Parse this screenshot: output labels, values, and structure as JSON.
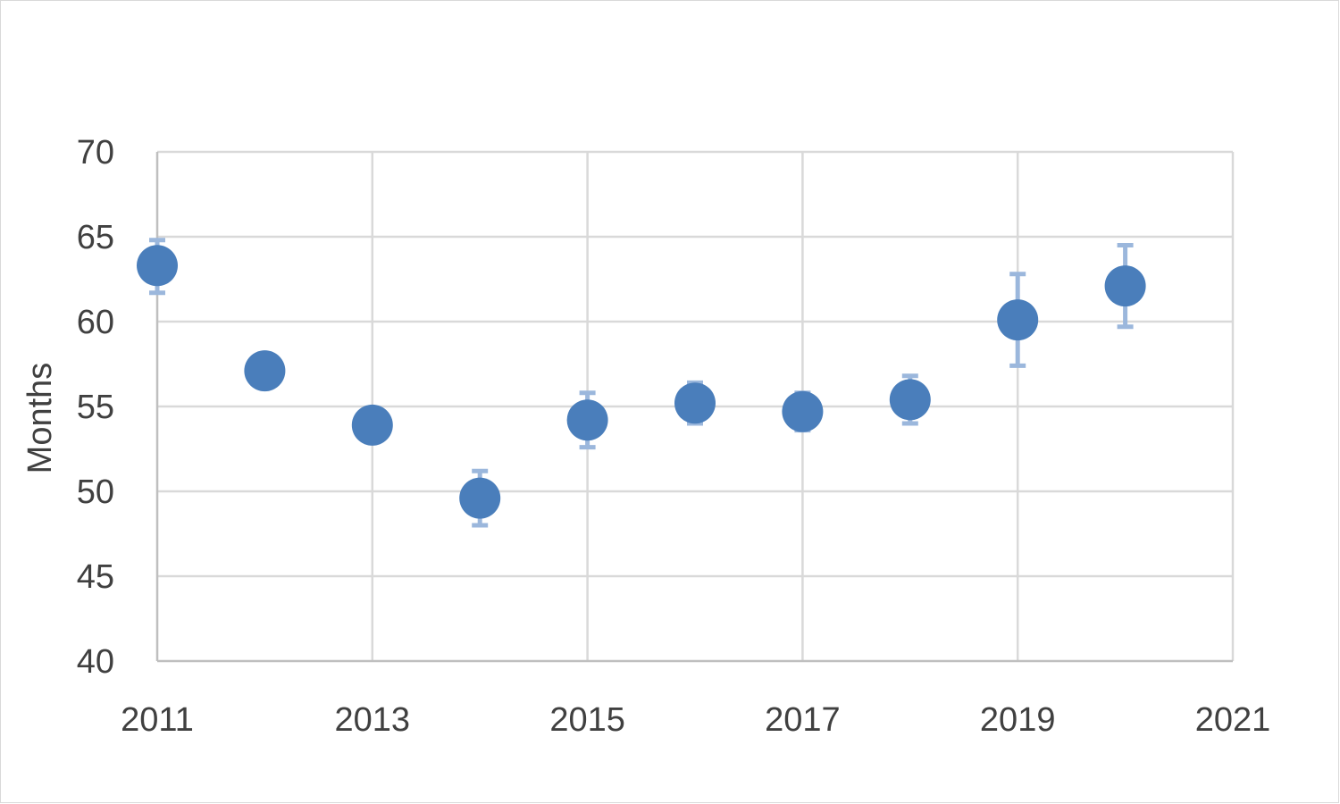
{
  "chart_data": {
    "type": "scatter",
    "title": "",
    "xlabel": "",
    "ylabel": "Months",
    "xlim": [
      2011,
      2021
    ],
    "ylim": [
      40,
      70
    ],
    "x_ticks": [
      2011,
      2013,
      2015,
      2017,
      2019,
      2021
    ],
    "y_ticks": [
      40,
      45,
      50,
      55,
      60,
      65,
      70
    ],
    "grid": true,
    "legend": "none",
    "marker_color": "#4a7ebb",
    "errorbar_color": "#9bb7dc",
    "grid_color": "#d9d9d9",
    "points": [
      {
        "x": 2011,
        "y": 63.3,
        "err_low": 61.7,
        "err_high": 64.8
      },
      {
        "x": 2012,
        "y": 57.1,
        "err_low": null,
        "err_high": null
      },
      {
        "x": 2013,
        "y": 53.9,
        "err_low": null,
        "err_high": null
      },
      {
        "x": 2014,
        "y": 49.6,
        "err_low": 48.0,
        "err_high": 51.2
      },
      {
        "x": 2015,
        "y": 54.2,
        "err_low": 52.6,
        "err_high": 55.8
      },
      {
        "x": 2016,
        "y": 55.2,
        "err_low": 54.0,
        "err_high": 56.4
      },
      {
        "x": 2017,
        "y": 54.7,
        "err_low": 53.6,
        "err_high": 55.8
      },
      {
        "x": 2018,
        "y": 55.4,
        "err_low": 54.0,
        "err_high": 56.8
      },
      {
        "x": 2019,
        "y": 60.1,
        "err_low": 57.4,
        "err_high": 62.8
      },
      {
        "x": 2020,
        "y": 62.1,
        "err_low": 59.7,
        "err_high": 64.5
      }
    ]
  }
}
